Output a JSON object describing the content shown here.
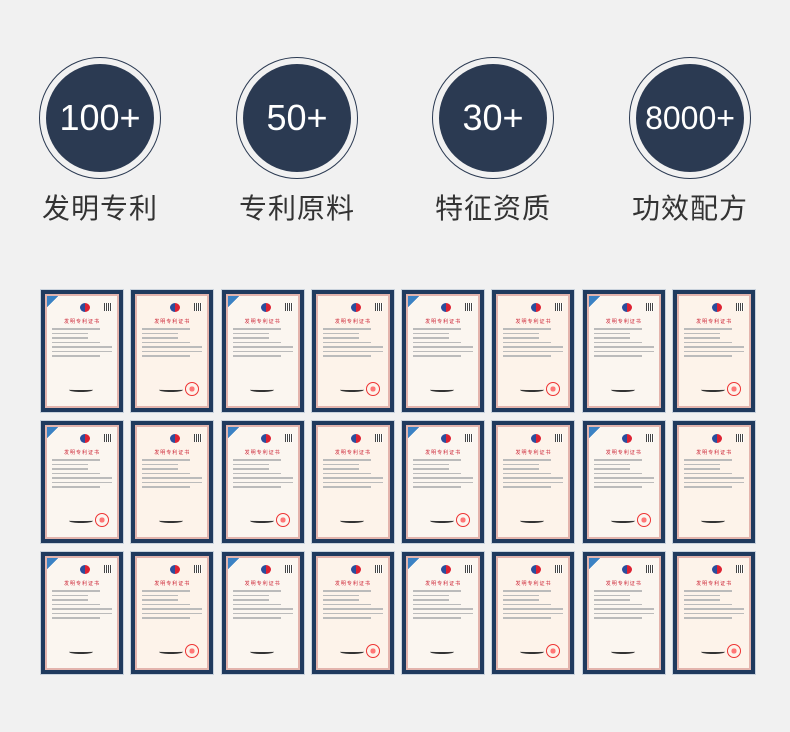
{
  "stats": [
    {
      "value": "100+",
      "label": "发明专利"
    },
    {
      "value": "50+",
      "label": "专利原料"
    },
    {
      "value": "30+",
      "label": "特征资质"
    },
    {
      "value": "8000+",
      "label": "功效配方"
    }
  ],
  "certificate": {
    "title": "发明专利证书",
    "rows": 3,
    "columns": 8
  },
  "colors": {
    "circle": "#2b3a52",
    "frame": "#1f3a5e",
    "background": "#f1f1f1"
  }
}
